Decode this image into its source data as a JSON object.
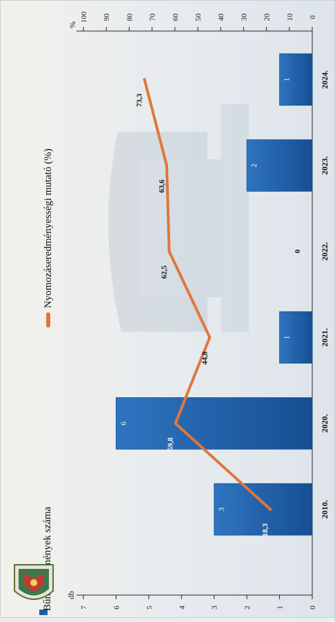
{
  "colors": {
    "bar": "#1f5fa9",
    "line": "#e0763e",
    "axis": "#222222",
    "background": "#ecf0f3"
  },
  "icons": [
    "police-emblem-icon"
  ],
  "left_axis": {
    "label": "db",
    "ticks": [
      "0",
      "1",
      "2",
      "3",
      "4",
      "5",
      "6",
      "7"
    ]
  },
  "right_axis": {
    "label": "%",
    "ticks": [
      "0",
      "10",
      "20",
      "30",
      "40",
      "50",
      "60",
      "70",
      "80",
      "90",
      "100"
    ]
  },
  "legend": {
    "bar_label": "Bűncselekmények száma",
    "line_label": "Nyomozáseredményességi mutató (%)"
  },
  "chart_data": {
    "type": "bar",
    "orientation": "rotated-90",
    "categories": [
      "2010.",
      "2020.",
      "2021.",
      "2022.",
      "2023.",
      "2024."
    ],
    "series": [
      {
        "name": "Bűncselekmények száma",
        "type": "bar",
        "axis": "db",
        "values": [
          3,
          6,
          1,
          0,
          2,
          1
        ]
      },
      {
        "name": "Nyomozáseredményességi mutató (%)",
        "type": "line",
        "axis": "%",
        "values": [
          18.3,
          59.8,
          44.8,
          62.5,
          63.6,
          73.3
        ]
      }
    ],
    "bar_labels": [
      "3",
      "6",
      "1",
      "0",
      "2",
      "1"
    ],
    "line_labels": [
      "18,3",
      "59,8",
      "44,8",
      "62,5",
      "63,6",
      "73,3"
    ],
    "ylim_left": [
      0,
      7
    ],
    "ylim_right": [
      0,
      100
    ],
    "legend_position": "top"
  }
}
